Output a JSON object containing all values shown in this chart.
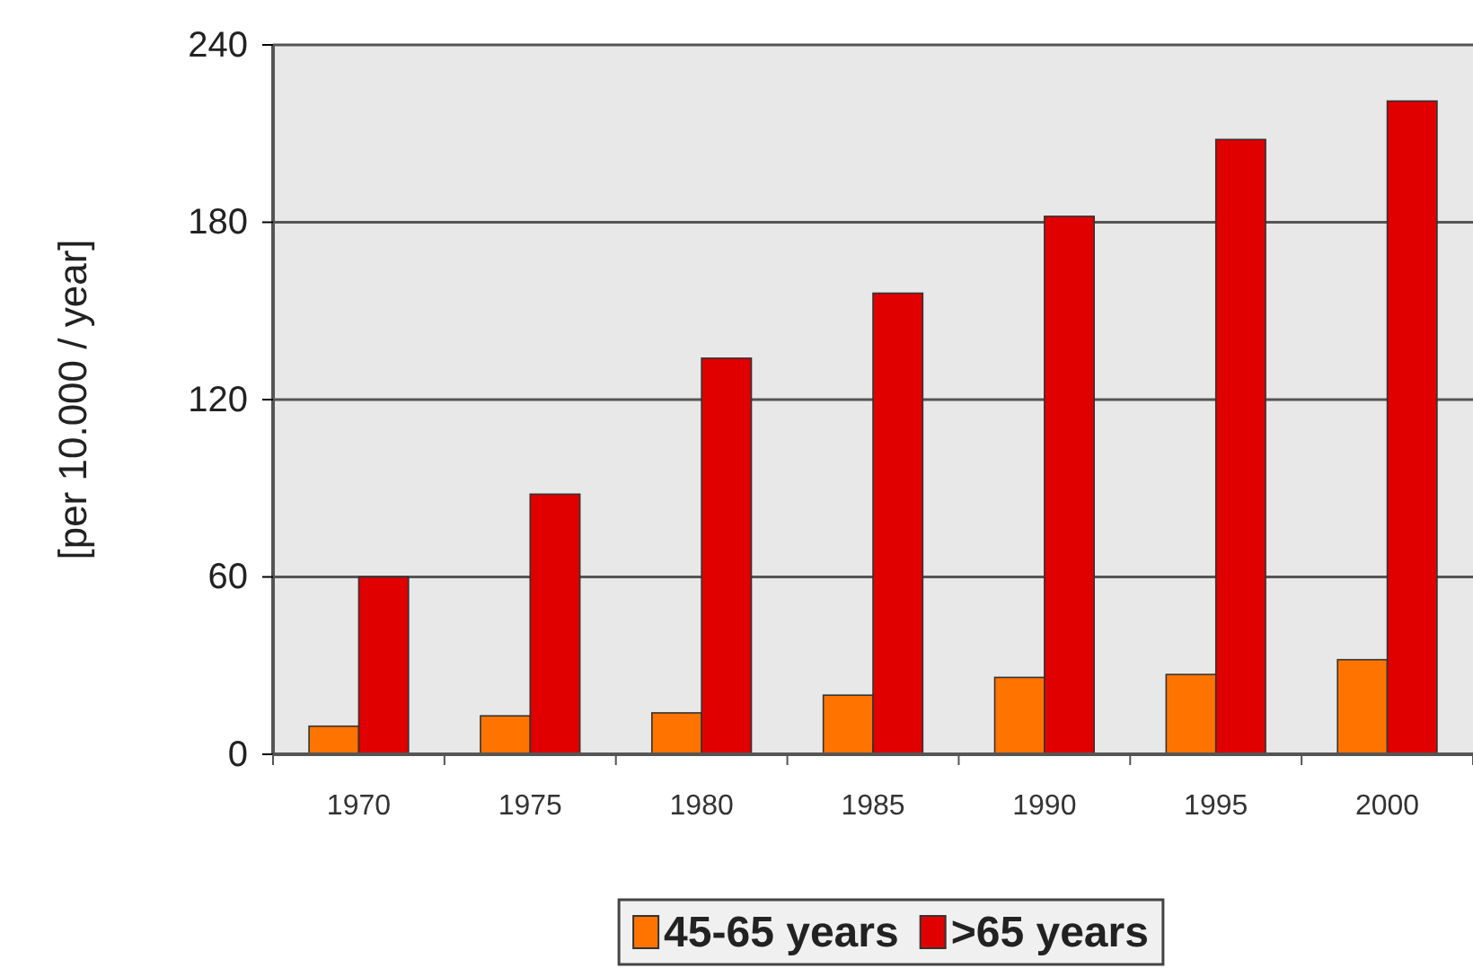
{
  "chart_data": {
    "type": "bar",
    "ylabel": "[per 10.000 / year]",
    "categories": [
      "1970",
      "1975",
      "1980",
      "1985",
      "1990",
      "1995",
      "2000"
    ],
    "series": [
      {
        "name": "45-65 years",
        "color": "#ff7400",
        "values": [
          9.5,
          13,
          14,
          20,
          26,
          27,
          32
        ]
      },
      {
        "name": ">65 years",
        "color": "#e00000",
        "values": [
          60,
          88,
          134,
          156,
          182,
          208,
          221
        ]
      }
    ],
    "ylim": [
      0,
      240
    ],
    "yticks": [
      0,
      60,
      120,
      180,
      240
    ],
    "grid": "y",
    "legend": "bottom"
  }
}
